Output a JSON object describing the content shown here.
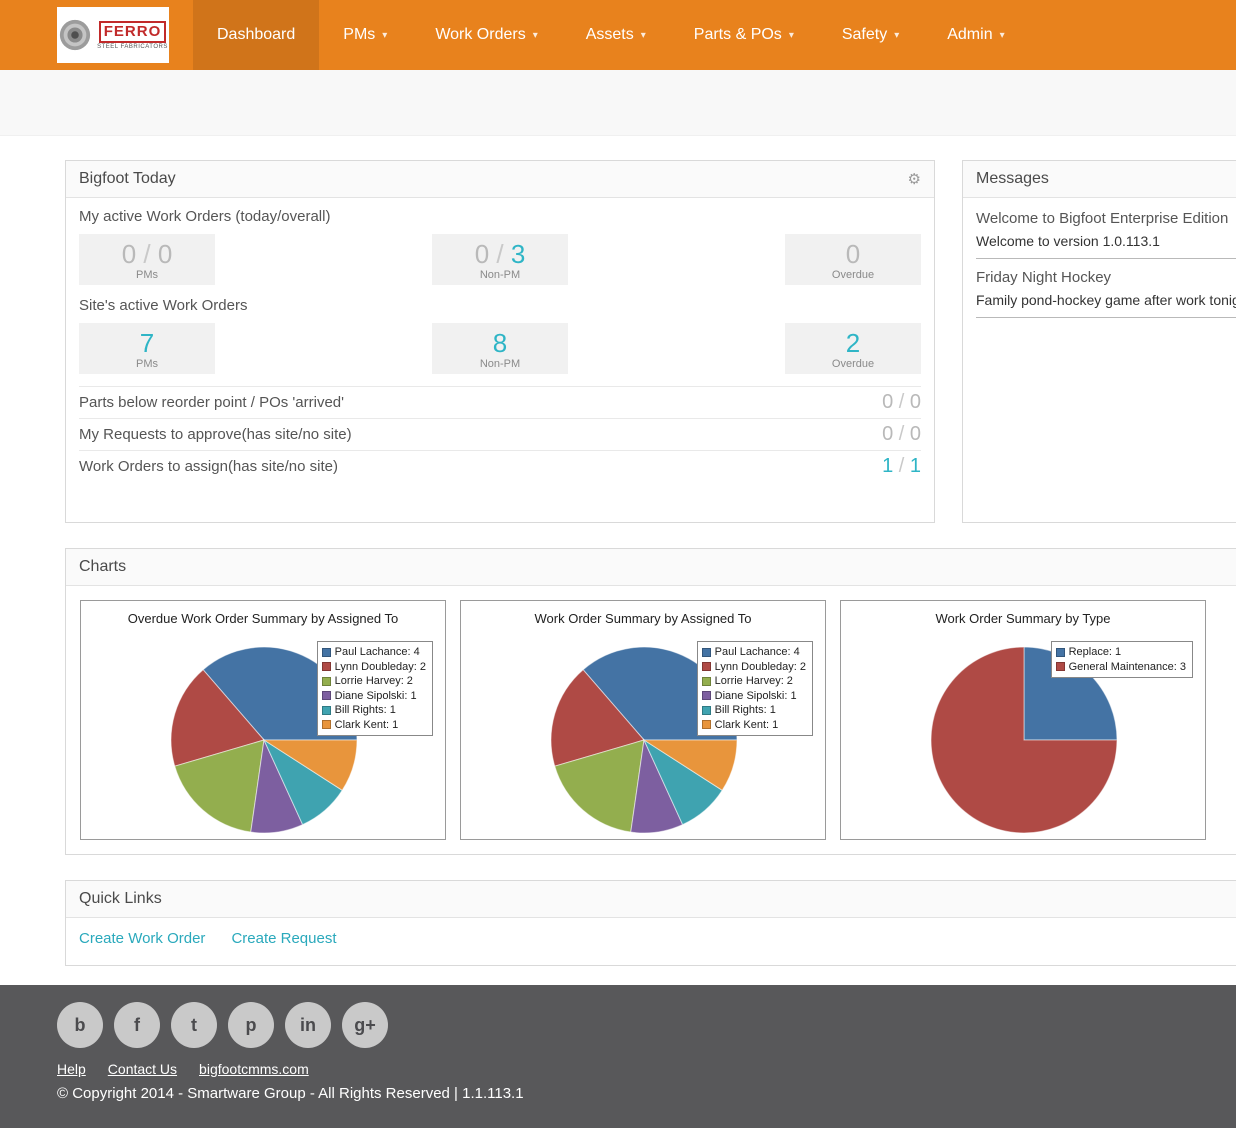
{
  "accent_color": "#2FB5C6",
  "nav": {
    "brand": {
      "name": "FERRO",
      "tagline": "STEEL FABRICATORS"
    },
    "items": [
      {
        "label": "Dashboard",
        "active": true,
        "caret": false
      },
      {
        "label": "PMs",
        "active": false,
        "caret": true
      },
      {
        "label": "Work Orders",
        "active": false,
        "caret": true
      },
      {
        "label": "Assets",
        "active": false,
        "caret": true
      },
      {
        "label": "Parts & POs",
        "active": false,
        "caret": true
      },
      {
        "label": "Safety",
        "active": false,
        "caret": true
      },
      {
        "label": "Admin",
        "active": false,
        "caret": true
      }
    ]
  },
  "panels": {
    "bigfoot_today": {
      "title": "Bigfoot Today",
      "sections": [
        {
          "label": "My active Work Orders (today/overall)",
          "stats": [
            {
              "label": "PMs",
              "parts": [
                {
                  "text": "0",
                  "accent": false
                },
                {
                  "text": "0",
                  "accent": false
                }
              ]
            },
            {
              "label": "Non-PM",
              "parts": [
                {
                  "text": "0",
                  "accent": false
                },
                {
                  "text": "3",
                  "accent": true
                }
              ]
            },
            {
              "label": "Overdue",
              "parts": [
                {
                  "text": "0",
                  "accent": false
                }
              ]
            }
          ]
        },
        {
          "label": "Site's active Work Orders",
          "stats": [
            {
              "label": "PMs",
              "parts": [
                {
                  "text": "7",
                  "accent": true
                }
              ]
            },
            {
              "label": "Non-PM",
              "parts": [
                {
                  "text": "8",
                  "accent": true
                }
              ]
            },
            {
              "label": "Overdue",
              "parts": [
                {
                  "text": "2",
                  "accent": true
                }
              ]
            }
          ]
        }
      ],
      "rows": [
        {
          "label": "Parts below reorder point / POs 'arrived'",
          "parts": [
            {
              "text": "0",
              "accent": false
            },
            {
              "text": "0",
              "accent": false
            }
          ]
        },
        {
          "label": "My Requests to approve(has site/no site)",
          "parts": [
            {
              "text": "0",
              "accent": false
            },
            {
              "text": "0",
              "accent": false
            }
          ]
        },
        {
          "label": "Work Orders to assign(has site/no site)",
          "parts": [
            {
              "text": "1",
              "accent": true
            },
            {
              "text": "1",
              "accent": true
            }
          ]
        }
      ]
    },
    "messages": {
      "title": "Messages",
      "items": [
        {
          "title": "Welcome to Bigfoot Enterprise Edition",
          "body": "Welcome to version 1.0.113.1"
        },
        {
          "title": "Friday Night Hockey",
          "body": "Family pond-hockey game after work tonig"
        }
      ]
    },
    "charts": {
      "title": "Charts"
    },
    "quick_links": {
      "title": "Quick Links",
      "links": [
        "Create Work Order",
        "Create Request"
      ]
    }
  },
  "chart_data": [
    {
      "type": "pie",
      "title": "Overdue Work Order Summary by Assigned To",
      "legend_position": "top-right",
      "slices": [
        {
          "label": "Paul Lachance",
          "value": 4,
          "color": "#4473A4"
        },
        {
          "label": "Lynn Doubleday",
          "value": 2,
          "color": "#AF4A45"
        },
        {
          "label": "Lorrie Harvey",
          "value": 2,
          "color": "#93AE4E"
        },
        {
          "label": "Diane Sipolski",
          "value": 1,
          "color": "#7D5FA0"
        },
        {
          "label": "Bill Rights",
          "value": 1,
          "color": "#3FA3B0"
        },
        {
          "label": "Clark Kent",
          "value": 1,
          "color": "#E8953C"
        }
      ]
    },
    {
      "type": "pie",
      "title": "Work Order Summary by Assigned To",
      "legend_position": "top-right",
      "slices": [
        {
          "label": "Paul Lachance",
          "value": 4,
          "color": "#4473A4"
        },
        {
          "label": "Lynn Doubleday",
          "value": 2,
          "color": "#AF4A45"
        },
        {
          "label": "Lorrie Harvey",
          "value": 2,
          "color": "#93AE4E"
        },
        {
          "label": "Diane Sipolski",
          "value": 1,
          "color": "#7D5FA0"
        },
        {
          "label": "Bill Rights",
          "value": 1,
          "color": "#3FA3B0"
        },
        {
          "label": "Clark Kent",
          "value": 1,
          "color": "#E8953C"
        }
      ]
    },
    {
      "type": "pie",
      "title": "Work Order Summary by Type",
      "legend_position": "top-right",
      "slices": [
        {
          "label": "Replace",
          "value": 1,
          "color": "#4473A4"
        },
        {
          "label": "General Maintenance",
          "value": 3,
          "color": "#AF4A45"
        }
      ]
    }
  ],
  "footer": {
    "social": [
      {
        "name": "blogger",
        "glyph": "b"
      },
      {
        "name": "facebook",
        "glyph": "f"
      },
      {
        "name": "twitter",
        "glyph": "t"
      },
      {
        "name": "pinterest",
        "glyph": "p"
      },
      {
        "name": "linkedin",
        "glyph": "in"
      },
      {
        "name": "google-plus",
        "glyph": "g+"
      }
    ],
    "links": [
      "Help",
      "Contact Us",
      "bigfootcmms.com"
    ],
    "copyright": "© Copyright 2014 - Smartware Group - All Rights Reserved | 1.1.113.1"
  }
}
